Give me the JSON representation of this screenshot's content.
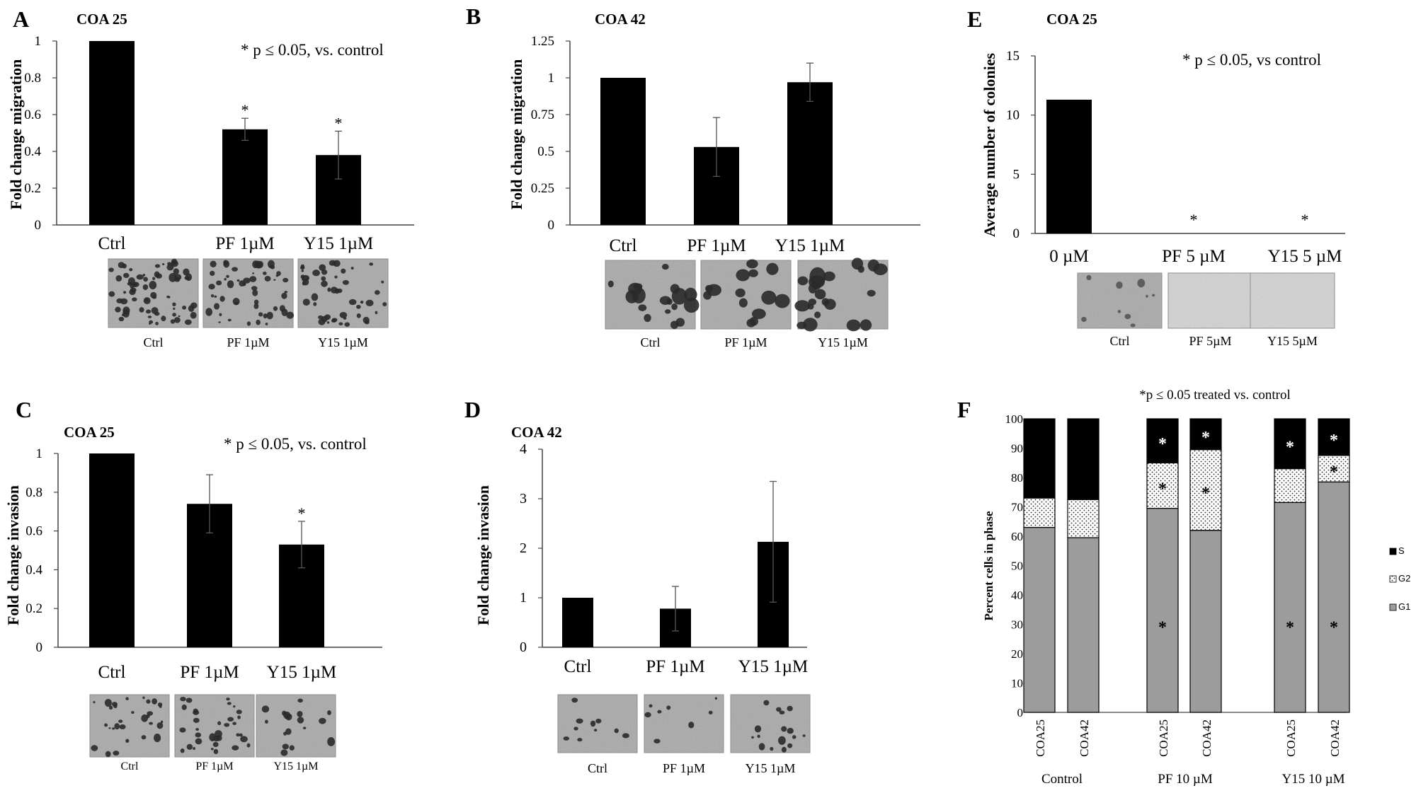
{
  "panels": {
    "A": {
      "letter": "A",
      "chart_data": {
        "type": "bar",
        "title": "COA 25",
        "ylabel": "Fold change migration",
        "categories": [
          "Ctrl",
          "PF 1µM",
          "Y15 1µM"
        ],
        "values": [
          1.0,
          0.52,
          0.38
        ],
        "errors": [
          0,
          0.06,
          0.13
        ],
        "stars": [
          "",
          "*",
          "*"
        ],
        "yticks": [
          0,
          0.2,
          0.4,
          0.6,
          0.8,
          1
        ],
        "yticklabels": [
          "0",
          "0.2",
          "0.4",
          "0.6",
          "0.8",
          "1"
        ],
        "ylim": [
          0,
          1
        ],
        "annotation": "* p ≤ 0.05, vs. control",
        "image_labels": [
          "Ctrl",
          "PF 1µM",
          "Y15 1µM"
        ]
      }
    },
    "B": {
      "letter": "B",
      "chart_data": {
        "type": "bar",
        "title": "COA 42",
        "ylabel": "Fold change migration",
        "categories": [
          "Ctrl",
          "PF 1µM",
          "Y15 1µM"
        ],
        "values": [
          1.0,
          0.53,
          0.97
        ],
        "errors": [
          0,
          0.2,
          0.13
        ],
        "stars": [
          "",
          "",
          ""
        ],
        "yticks": [
          0,
          0.25,
          0.5,
          0.75,
          1,
          1.25
        ],
        "yticklabels": [
          "0",
          "0.25",
          "0.5",
          "0.75",
          "1",
          "1.25"
        ],
        "ylim": [
          0,
          1.25
        ],
        "annotation": "",
        "image_labels": [
          "Ctrl",
          "PF 1µM",
          "Y15 1µM"
        ]
      }
    },
    "C": {
      "letter": "C",
      "chart_data": {
        "type": "bar",
        "title": "COA 25",
        "ylabel": "Fold change invasion",
        "categories": [
          "Ctrl",
          "PF 1µM",
          "Y15 1µM"
        ],
        "values": [
          1.0,
          0.74,
          0.53
        ],
        "errors": [
          0,
          0.15,
          0.12
        ],
        "stars": [
          "",
          "",
          "*"
        ],
        "yticks": [
          0,
          0.2,
          0.4,
          0.6,
          0.8,
          1
        ],
        "yticklabels": [
          "0",
          "0.2",
          "0.4",
          "0.6",
          "0.8",
          "1"
        ],
        "ylim": [
          0,
          1
        ],
        "annotation": "* p ≤ 0.05, vs. control",
        "image_labels": [
          "Ctrl",
          "PF 1µM",
          "Y15 1µM"
        ]
      }
    },
    "D": {
      "letter": "D",
      "chart_data": {
        "type": "bar",
        "title": "COA 42",
        "ylabel": "Fold change invasion",
        "categories": [
          "Ctrl",
          "PF 1µM",
          "Y15 1µM"
        ],
        "values": [
          1.0,
          0.78,
          2.13
        ],
        "errors": [
          0,
          0.45,
          1.22
        ],
        "stars": [
          "",
          "",
          ""
        ],
        "yticks": [
          0,
          1,
          2,
          3,
          4
        ],
        "yticklabels": [
          "0",
          "1",
          "2",
          "3",
          "4"
        ],
        "ylim": [
          0,
          4
        ],
        "annotation": "",
        "image_labels": [
          "Ctrl",
          "PF 1µM",
          "Y15 1µM"
        ]
      }
    },
    "E": {
      "letter": "E",
      "chart_data": {
        "type": "bar",
        "title": "COA 25",
        "ylabel": "Average number of colonies",
        "categories": [
          "0 µM",
          "PF 5 µM",
          "Y15 5 µM"
        ],
        "values": [
          11.3,
          0,
          0
        ],
        "errors": [
          0,
          0,
          0
        ],
        "stars": [
          "",
          "*",
          "*"
        ],
        "yticks": [
          0,
          5,
          10,
          15
        ],
        "yticklabels": [
          "0",
          "5",
          "10",
          "15"
        ],
        "ylim": [
          0,
          15
        ],
        "annotation": "* p ≤ 0.05, vs control",
        "image_labels": [
          "Ctrl",
          "PF 5µM",
          "Y15 5µM"
        ]
      }
    },
    "F": {
      "letter": "F",
      "chart_data": {
        "type": "bar",
        "stacked": true,
        "annotation": "*p ≤ 0.05 treated vs. control",
        "ylabel": "Percent cells in phase",
        "categories": [
          "COA25",
          "COA42",
          "COA25",
          "COA42",
          "COA25",
          "COA42"
        ],
        "groups": [
          "Control",
          "PF 10 µM",
          "Y15 10 µM"
        ],
        "series": [
          {
            "name": "G1",
            "values": [
              63,
              59.5,
              69.5,
              62,
              71.5,
              78.5
            ],
            "stars": [
              "",
              "",
              "*",
              "",
              "*",
              "*"
            ]
          },
          {
            "name": "G2",
            "values": [
              10,
              13,
              15.5,
              27.5,
              11.5,
              9
            ],
            "stars": [
              "",
              "",
              "*",
              "*",
              "",
              "*"
            ]
          },
          {
            "name": "S",
            "values": [
              27,
              27.5,
              15,
              10.5,
              17,
              12.5
            ],
            "stars": [
              "",
              "",
              "*",
              "*",
              "*",
              "*"
            ]
          }
        ],
        "yticks": [
          0,
          10,
          20,
          30,
          40,
          50,
          60,
          70,
          80,
          90,
          100
        ],
        "ylim": [
          0,
          100
        ],
        "legend": [
          "S",
          "G2",
          "G1"
        ],
        "legend_position": "right"
      }
    }
  }
}
